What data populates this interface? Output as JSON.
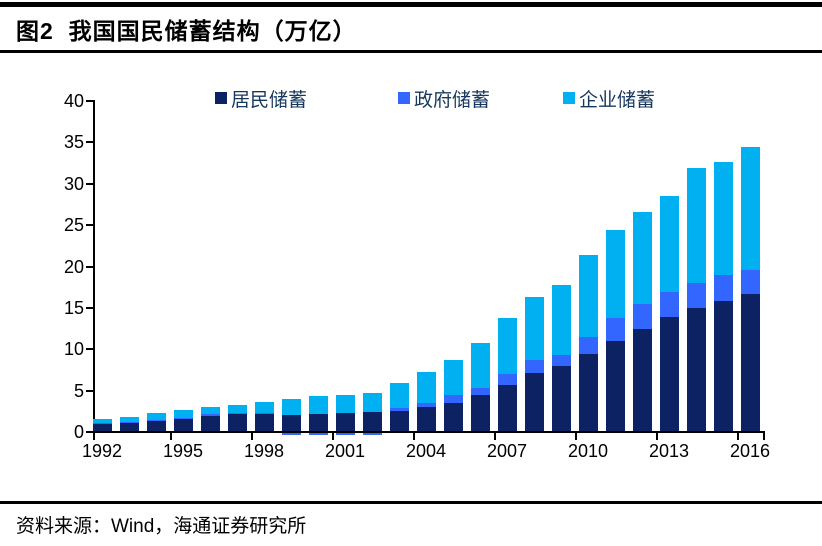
{
  "title": "图2  我国国民储蓄结构（万亿）",
  "source": "资料来源：Wind，海通证券研究所",
  "legend": [
    {
      "label": "居民储蓄",
      "color": "#0D2263"
    },
    {
      "label": "政府储蓄",
      "color": "#3366FF"
    },
    {
      "label": "企业储蓄",
      "color": "#00B0F0"
    }
  ],
  "colors": {
    "household": "#0D2263",
    "government": "#3366FF",
    "corporate": "#00B0F0",
    "rule": "#000000"
  },
  "chart_data": {
    "type": "bar",
    "stacked": true,
    "title": "我国国民储蓄结构（万亿）",
    "xlabel": "",
    "ylabel": "",
    "ylim": [
      0,
      40
    ],
    "yticks": [
      0,
      5,
      10,
      15,
      20,
      25,
      30,
      35,
      40
    ],
    "grid": false,
    "legend_position": "top",
    "categories": [
      1992,
      1993,
      1994,
      1995,
      1996,
      1997,
      1998,
      1999,
      2000,
      2001,
      2002,
      2003,
      2004,
      2005,
      2006,
      2007,
      2008,
      2009,
      2010,
      2011,
      2012,
      2013,
      2014,
      2015,
      2016
    ],
    "x_tick_labels": [
      "1992",
      "1995",
      "1998",
      "2001",
      "2004",
      "2007",
      "2010",
      "2013",
      "2016"
    ],
    "series": [
      {
        "name": "居民储蓄",
        "key": "household",
        "color": "#0D2263",
        "values": [
          0.9,
          1.0,
          1.2,
          1.45,
          1.8,
          2.0,
          2.1,
          1.95,
          2.0,
          2.2,
          2.3,
          2.45,
          2.9,
          3.4,
          4.4,
          5.6,
          7.0,
          7.8,
          9.3,
          10.9,
          12.3,
          13.8,
          14.9,
          15.7,
          16.6
        ]
      },
      {
        "name": "政府储蓄",
        "key": "government",
        "color": "#3366FF",
        "values": [
          0.05,
          0.1,
          0.15,
          0.15,
          0.2,
          0.2,
          0.1,
          -0.3,
          -0.3,
          -0.3,
          -0.3,
          0.3,
          0.45,
          0.9,
          0.75,
          1.3,
          1.6,
          1.4,
          2.1,
          2.7,
          3.0,
          3.0,
          3.0,
          3.2,
          2.8
        ]
      },
      {
        "name": "企业储蓄",
        "key": "corporate",
        "color": "#00B0F0",
        "values": [
          0.5,
          0.6,
          0.8,
          0.9,
          0.85,
          0.95,
          1.3,
          1.9,
          2.25,
          2.15,
          2.35,
          3.0,
          3.8,
          4.3,
          5.45,
          6.7,
          7.6,
          8.4,
          9.9,
          10.7,
          11.2,
          11.6,
          13.9,
          13.6,
          14.9
        ]
      }
    ]
  }
}
